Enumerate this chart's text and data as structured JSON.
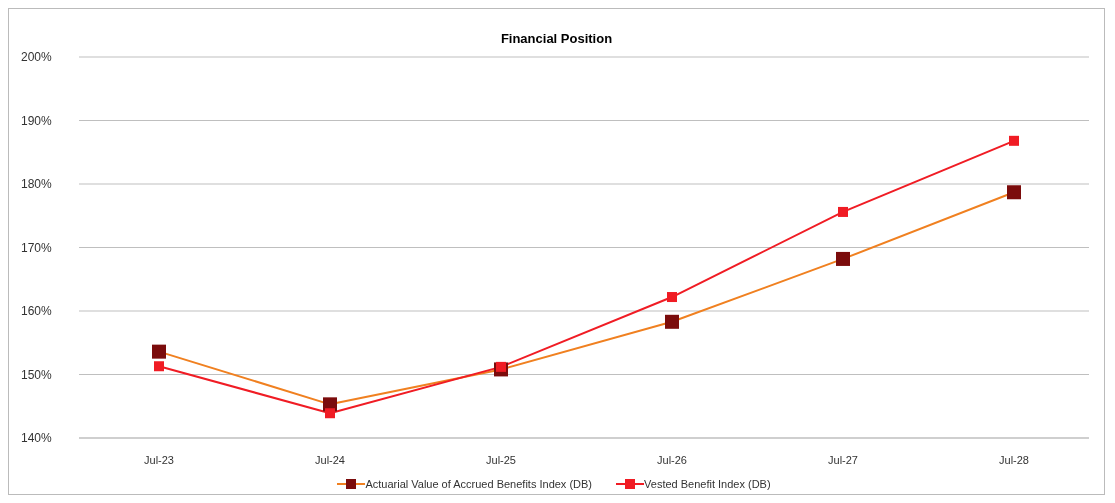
{
  "chart_data": {
    "type": "line",
    "title": "Financial Position",
    "categories": [
      "Jul-23",
      "Jul-24",
      "Jul-25",
      "Jul-26",
      "Jul-27",
      "Jul-28"
    ],
    "series": [
      {
        "name": "Actuarial Value of Accrued Benefits Index (DB)",
        "color": "#f08020",
        "colors": [
          "#7b0c0c",
          "#7b0c0c",
          "#7b0c0c",
          "#7b0c0c",
          "#7b0c0c",
          "#7b0c0c"
        ],
        "values": [
          153.6,
          145.3,
          150.8,
          158.3,
          168.2,
          178.7
        ]
      },
      {
        "name": "Vested Benefit Index (DB)",
        "color": "#f01c24",
        "values": [
          151.3,
          143.9,
          151.2,
          162.2,
          175.6,
          186.8
        ]
      }
    ],
    "ylim": [
      140,
      200
    ],
    "yticks": [
      {
        "value": 140,
        "label": "140%"
      },
      {
        "value": 150,
        "label": "150%"
      },
      {
        "value": 160,
        "label": "160%"
      },
      {
        "value": 170,
        "label": "170%"
      },
      {
        "value": 180,
        "label": "180%"
      },
      {
        "value": 190,
        "label": "190%"
      },
      {
        "value": 200,
        "label": "200%"
      }
    ],
    "grid": "y",
    "legend": "bottom",
    "marker": "square",
    "line_style": "solid"
  }
}
